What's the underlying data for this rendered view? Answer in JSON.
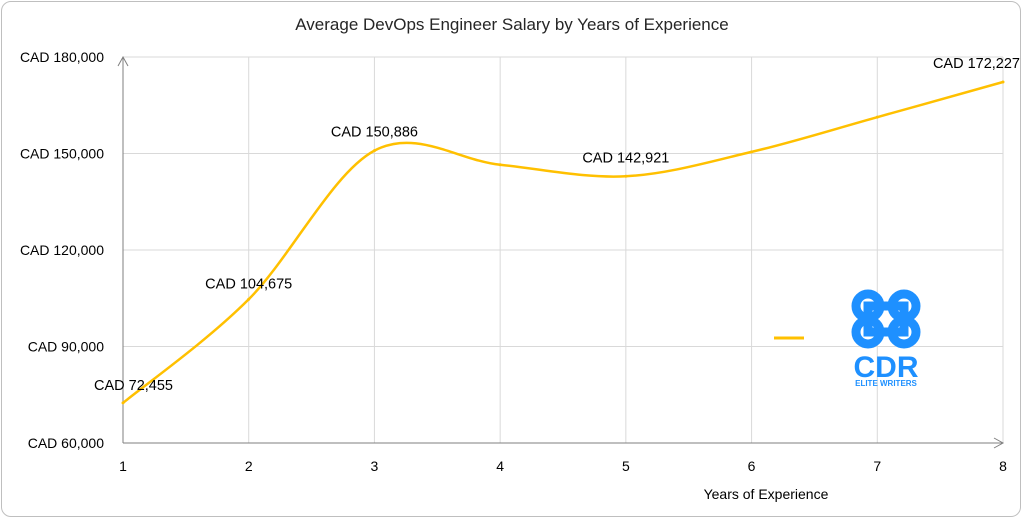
{
  "chart_data": {
    "type": "line",
    "title": "Average DevOps Engineer Salary by Years of Experience",
    "xlabel": "Years of Experience",
    "ylabel": "",
    "x": [
      1,
      2,
      3,
      4,
      5,
      6,
      7,
      8
    ],
    "series": [
      {
        "values": [
          72455,
          104675,
          150886,
          146500,
          142921,
          150500,
          161300,
          172227
        ],
        "color": "#FFC000",
        "smooth": true
      }
    ],
    "data_labels": [
      {
        "x": 1,
        "text": "CAD 72,455"
      },
      {
        "x": 2,
        "text": "CAD 104,675"
      },
      {
        "x": 3,
        "text": "CAD 150,886"
      },
      {
        "x": 5,
        "text": "CAD 142,921"
      },
      {
        "x": 8,
        "text": "CAD 172,227"
      }
    ],
    "y_ticks": [
      "CAD 60,000",
      "CAD 90,000",
      "CAD 120,000",
      "CAD 150,000",
      "CAD 180,000"
    ],
    "y_tick_values": [
      60000,
      90000,
      120000,
      150000,
      180000
    ],
    "x_ticks": [
      "1",
      "2",
      "3",
      "4",
      "5",
      "6",
      "7",
      "8"
    ],
    "xlim": [
      1,
      8
    ],
    "ylim": [
      60000,
      180000
    ],
    "grid": "vertical and horizontal",
    "legend": "center-right, swatch only"
  },
  "logo": {
    "name": "CDR",
    "tagline": "ELITE WRITERS",
    "color": "#1E90FF",
    "icon": "command-key-icon"
  }
}
